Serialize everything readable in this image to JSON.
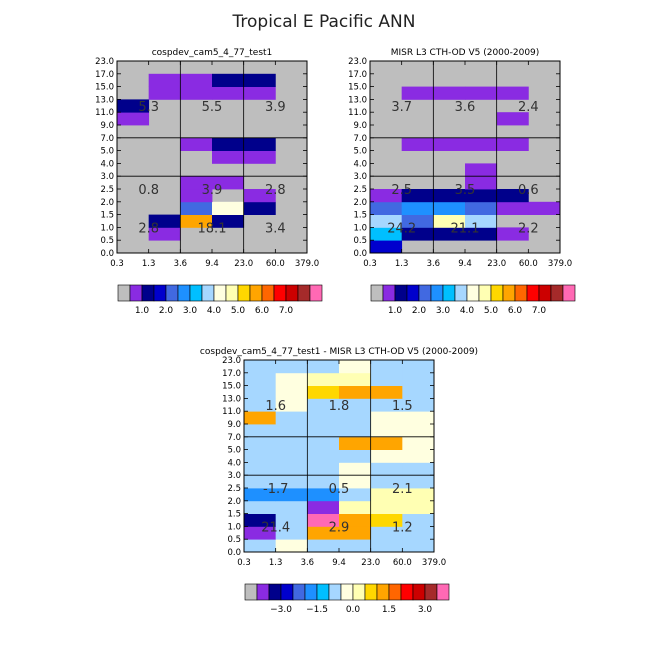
{
  "title": "Tropical E Pacific ANN",
  "colors": {
    "abs": [
      "#bebebe",
      "#8a2be2",
      "#00008b",
      "#0000cd",
      "#4169e1",
      "#1e90ff",
      "#00bfff",
      "#a6d7ff",
      "#ffffe0",
      "#ffffb3",
      "#ffd700",
      "#ffa500",
      "#ff6600",
      "#ff0000",
      "#cc0000",
      "#a52a2a",
      "#ff69b4"
    ],
    "diff": [
      "#bebebe",
      "#8a2be2",
      "#00008b",
      "#0000cd",
      "#4169e1",
      "#1e90ff",
      "#00bfff",
      "#a6d7ff",
      "#ffffe0",
      "#ffffb3",
      "#ffd700",
      "#ffa500",
      "#ff6600",
      "#ff0000",
      "#cc0000",
      "#a52a2a",
      "#ff69b4"
    ]
  },
  "chart_data": [
    {
      "type": "heatmap",
      "title": "cospdev_cam5_4_77_test1",
      "x_ticks": [
        "0.3",
        "1.3",
        "3.6",
        "9.4",
        "23.0",
        "60.0",
        "379.0"
      ],
      "y_ticks": [
        "0.0",
        "0.5",
        "1.0",
        "1.5",
        "2.0",
        "2.5",
        "3.0",
        "4.0",
        "5.0",
        "7.0",
        "9.0",
        "11.0",
        "13.0",
        "15.0",
        "17.0",
        "23.0"
      ],
      "grid": "dividers at x=3.6, 23.0 and y=3.0, 7.0",
      "cells": [
        [
          0,
          0,
          0,
          0,
          0,
          0
        ],
        [
          0,
          1,
          0,
          0,
          0,
          0
        ],
        [
          0,
          2,
          11,
          2,
          0,
          0
        ],
        [
          0,
          0,
          4,
          8,
          2,
          0
        ],
        [
          0,
          0,
          1,
          0,
          1,
          0
        ],
        [
          0,
          0,
          1,
          1,
          0,
          0
        ],
        [
          0,
          0,
          0,
          0,
          0,
          0
        ],
        [
          0,
          0,
          0,
          1,
          1,
          0
        ],
        [
          0,
          0,
          1,
          2,
          2,
          0
        ],
        [
          0,
          0,
          0,
          0,
          0,
          0
        ],
        [
          1,
          0,
          0,
          0,
          0,
          0
        ],
        [
          2,
          0,
          0,
          0,
          0,
          0
        ],
        [
          0,
          1,
          1,
          1,
          1,
          0
        ],
        [
          0,
          1,
          1,
          2,
          2,
          0
        ],
        [
          0,
          0,
          0,
          0,
          0,
          0
        ]
      ],
      "box_labels": [
        "2.8",
        "18.1",
        "3.4",
        "0.8",
        "3.9",
        "2.8",
        "5.3",
        "5.5",
        "3.9"
      ],
      "colorbar": {
        "labels": [
          "1.0",
          "2.0",
          "3.0",
          "4.0",
          "5.0",
          "6.0",
          "7.0"
        ]
      }
    },
    {
      "type": "heatmap",
      "title": "MISR L3 CTH-OD V5 (2000-2009)",
      "x_ticks": [
        "0.3",
        "1.3",
        "3.6",
        "9.4",
        "23.0",
        "60.0",
        "379.0"
      ],
      "y_ticks": [
        "0.0",
        "0.5",
        "1.0",
        "1.5",
        "2.0",
        "2.5",
        "3.0",
        "4.0",
        "5.0",
        "7.0",
        "9.0",
        "11.0",
        "13.0",
        "15.0",
        "17.0",
        "23.0"
      ],
      "grid": "dividers at x=3.6, 23.0 and y=3.0, 7.0",
      "cells": [
        [
          3,
          0,
          0,
          0,
          0,
          0
        ],
        [
          6,
          2,
          2,
          2,
          1,
          0
        ],
        [
          7,
          4,
          9,
          7,
          0,
          0
        ],
        [
          4,
          5,
          5,
          4,
          1,
          1
        ],
        [
          1,
          2,
          2,
          2,
          2,
          0
        ],
        [
          0,
          0,
          0,
          1,
          0,
          0
        ],
        [
          0,
          0,
          0,
          1,
          0,
          0
        ],
        [
          0,
          0,
          0,
          0,
          0,
          0
        ],
        [
          0,
          1,
          1,
          1,
          1,
          0
        ],
        [
          0,
          0,
          0,
          0,
          0,
          0
        ],
        [
          0,
          0,
          0,
          0,
          1,
          0
        ],
        [
          0,
          0,
          0,
          0,
          0,
          0
        ],
        [
          0,
          1,
          1,
          1,
          1,
          0
        ],
        [
          0,
          0,
          0,
          0,
          0,
          0
        ],
        [
          0,
          0,
          0,
          0,
          0,
          0
        ]
      ],
      "box_labels": [
        "24.2",
        "21.1",
        "2.2",
        "2.5",
        "3.5",
        "0.6",
        "3.7",
        "3.6",
        "2.4"
      ],
      "colorbar": {
        "labels": [
          "1.0",
          "2.0",
          "3.0",
          "4.0",
          "5.0",
          "6.0",
          "7.0"
        ]
      }
    },
    {
      "type": "heatmap",
      "title": "cospdev_cam5_4_77_test1 - MISR L3 CTH-OD V5 (2000-2009)",
      "x_ticks": [
        "0.3",
        "1.3",
        "3.6",
        "9.4",
        "23.0",
        "60.0",
        "379.0"
      ],
      "y_ticks": [
        "0.0",
        "0.5",
        "1.0",
        "1.5",
        "2.0",
        "2.5",
        "3.0",
        "4.0",
        "5.0",
        "7.0",
        "9.0",
        "11.0",
        "13.0",
        "15.0",
        "17.0",
        "23.0"
      ],
      "grid": "dividers at x=3.6, 23.0 and y=3.0, 7.0",
      "cells": [
        [
          7,
          8,
          7,
          7,
          7,
          7
        ],
        [
          1,
          7,
          11,
          11,
          7,
          7
        ],
        [
          2,
          7,
          16,
          11,
          10,
          7
        ],
        [
          7,
          7,
          1,
          9,
          9,
          9
        ],
        [
          5,
          5,
          5,
          7,
          9,
          9
        ],
        [
          7,
          7,
          7,
          8,
          7,
          7
        ],
        [
          7,
          7,
          7,
          8,
          7,
          7
        ],
        [
          7,
          7,
          7,
          7,
          8,
          8
        ],
        [
          7,
          7,
          7,
          11,
          11,
          8
        ],
        [
          7,
          7,
          7,
          7,
          8,
          8
        ],
        [
          11,
          7,
          7,
          7,
          8,
          8
        ],
        [
          7,
          8,
          7,
          7,
          7,
          7
        ],
        [
          7,
          8,
          10,
          11,
          11,
          7
        ],
        [
          7,
          8,
          9,
          9,
          7,
          7
        ],
        [
          7,
          7,
          7,
          8,
          7,
          7
        ]
      ],
      "box_labels": [
        "21.4",
        "2.9",
        "1.2",
        "-1.7",
        "0.5",
        "2.1",
        "1.6",
        "1.8",
        "1.5"
      ],
      "colorbar": {
        "labels": [
          "−3.0",
          "−1.5",
          "0.0",
          "1.5",
          "3.0"
        ]
      }
    }
  ]
}
